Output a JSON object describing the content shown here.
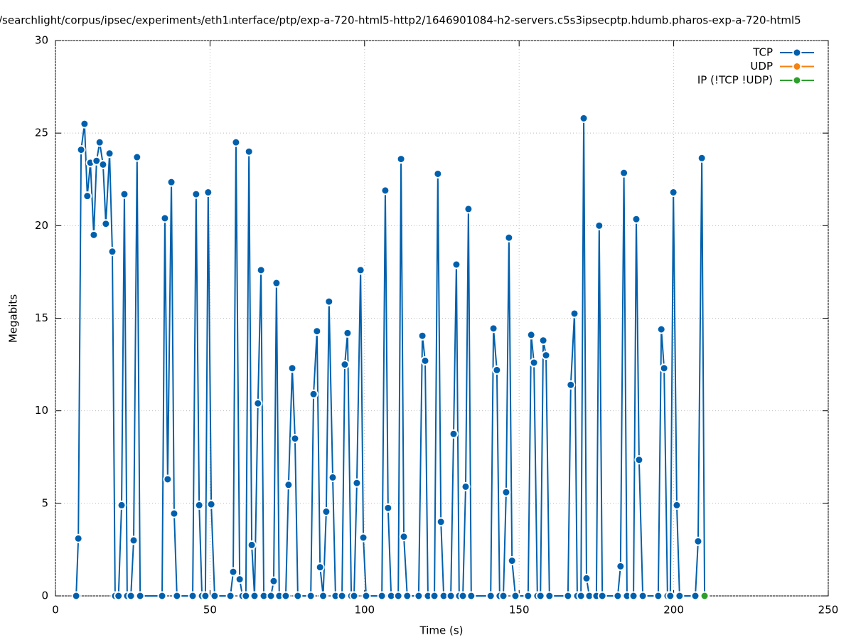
{
  "chart_data": {
    "type": "line",
    "title": "/searchlight/corpus/ipsec/experiment₃/eth1ᵢnterface/ptp/exp-a-720-html5-http2/1646901084-h2-servers.c5s3ipsecptp.hdumb.pharos-exp-a-720-html5",
    "x_label": "Time (s)",
    "y_label": "Megabits",
    "xlim": [
      0,
      250
    ],
    "xticks": [
      0,
      50,
      100,
      150,
      200,
      250
    ],
    "ylim": [
      0,
      30
    ],
    "yticks": [
      0,
      5,
      10,
      15,
      20,
      25,
      30
    ],
    "grid": true,
    "legend": "top-right",
    "series": [
      {
        "name": "TCP",
        "color": "#0060ad",
        "x": [
          6.7,
          7.4,
          8.3,
          9.4,
          10.3,
          11.3,
          12.4,
          13.3,
          14.3,
          15.4,
          16.3,
          17.5,
          18.4,
          19.3,
          20.4,
          21.4,
          22.3,
          23.2,
          24.4,
          25.3,
          26.4,
          27.4,
          34.5,
          35.4,
          36.3,
          37.5,
          38.4,
          39.3,
          44.4,
          45.5,
          46.5,
          47.4,
          48.5,
          49.4,
          50.4,
          51.5,
          56.6,
          57.5,
          58.4,
          59.6,
          60.5,
          61.6,
          62.6,
          63.5,
          64.4,
          65.5,
          66.5,
          67.4,
          69.7,
          70.6,
          71.5,
          72.4,
          74.5,
          75.4,
          76.6,
          77.5,
          78.4,
          82.6,
          83.5,
          84.6,
          85.6,
          86.6,
          87.6,
          88.5,
          89.7,
          90.6,
          92.7,
          93.6,
          94.5,
          95.7,
          96.6,
          97.5,
          98.7,
          99.6,
          100.5,
          105.6,
          106.7,
          107.6,
          108.6,
          110.9,
          111.8,
          112.7,
          113.8,
          117.5,
          118.7,
          119.6,
          120.5,
          122.6,
          123.7,
          124.7,
          125.6,
          127.9,
          128.8,
          129.7,
          130.6,
          131.8,
          132.7,
          133.6,
          134.5,
          140.8,
          141.7,
          142.8,
          143.7,
          144.9,
          145.8,
          146.7,
          147.7,
          148.8,
          152.9,
          153.9,
          154.8,
          155.9,
          156.9,
          157.8,
          158.7,
          159.8,
          165.8,
          166.7,
          167.9,
          168.8,
          170.0,
          170.9,
          171.8,
          172.7,
          175.0,
          175.9,
          176.9,
          181.9,
          182.8,
          183.9,
          184.9,
          187.0,
          187.9,
          188.8,
          190.0,
          195.0,
          196.0,
          196.9,
          198.0,
          198.9,
          199.9,
          201.0,
          201.9,
          207.0,
          207.9,
          209.1,
          210.0
        ],
        "values": [
          0,
          3.1,
          24.1,
          25.5,
          21.6,
          23.4,
          19.5,
          23.5,
          24.5,
          23.3,
          20.1,
          23.9,
          18.6,
          0,
          0,
          4.9,
          21.7,
          0,
          0,
          3.0,
          23.7,
          0,
          0,
          20.4,
          6.3,
          22.35,
          4.45,
          0,
          0,
          21.7,
          4.9,
          0,
          0,
          21.8,
          4.95,
          0,
          0,
          1.3,
          24.5,
          0.9,
          0,
          0,
          24.0,
          2.75,
          0,
          10.4,
          17.6,
          0,
          0,
          0.8,
          16.9,
          0,
          0,
          6.0,
          12.3,
          8.5,
          0,
          0,
          10.9,
          14.3,
          1.55,
          0,
          4.55,
          15.9,
          6.4,
          0,
          0,
          12.5,
          14.2,
          0,
          0,
          6.1,
          17.6,
          3.15,
          0,
          0,
          21.9,
          4.75,
          0,
          0,
          23.6,
          3.2,
          0,
          0,
          14.05,
          12.7,
          0,
          0,
          22.8,
          4.0,
          0,
          0,
          8.75,
          17.9,
          0,
          0,
          5.9,
          20.9,
          0,
          0,
          14.45,
          12.2,
          0,
          0,
          5.6,
          19.35,
          1.9,
          0,
          0,
          14.1,
          12.6,
          0,
          0,
          13.8,
          13.0,
          0,
          0,
          11.4,
          15.25,
          0,
          0,
          25.8,
          0.95,
          0,
          0,
          20.0,
          0,
          0,
          1.6,
          22.85,
          0,
          0,
          20.35,
          7.35,
          0,
          0,
          14.4,
          12.3,
          0,
          0,
          21.8,
          4.9,
          0,
          0,
          2.95,
          23.65,
          0
        ]
      },
      {
        "name": "UDP",
        "color": "#f5820f",
        "x": [],
        "values": []
      },
      {
        "name": "IP (!TCP  !UDP)",
        "color": "#2ca02c",
        "x": [
          210
        ],
        "values": [
          0
        ]
      }
    ]
  }
}
